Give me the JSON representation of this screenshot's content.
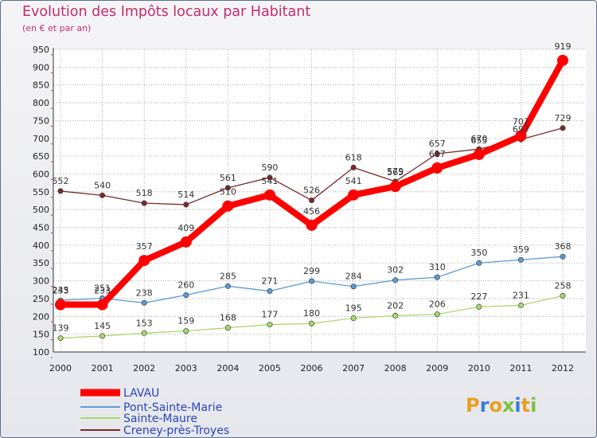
{
  "chart_data": {
    "type": "line",
    "title": "Evolution des Impôts locaux par Habitant",
    "subtitle": "(en € et par an)",
    "xlabel": "",
    "ylabel": "",
    "ylim": [
      100,
      950
    ],
    "yticks": [
      100,
      150,
      200,
      250,
      300,
      350,
      400,
      450,
      500,
      550,
      600,
      650,
      700,
      750,
      800,
      850,
      900,
      950
    ],
    "categories": [
      "2000",
      "2001",
      "2002",
      "2003",
      "2004",
      "2005",
      "2006",
      "2007",
      "2008",
      "2009",
      "2010",
      "2011",
      "2012"
    ],
    "series": [
      {
        "name": "LAVAU",
        "color": "#ff0000",
        "values": [
          233,
          233,
          357,
          409,
          510,
          541,
          456,
          541,
          565,
          617,
          655,
          707,
          919
        ],
        "labels": [
          "233",
          "233",
          "357",
          "409",
          "510",
          "541",
          "456",
          "541",
          "565",
          "617",
          "655",
          "707",
          "919"
        ]
      },
      {
        "name": "Pont-Sainte-Marie",
        "color": "#5b9bd5",
        "values": [
          245,
          251,
          238,
          260,
          285,
          271,
          299,
          284,
          302,
          310,
          350,
          359,
          368
        ],
        "labels": [
          "245",
          "251",
          "238",
          "260",
          "285",
          "271",
          "299",
          "284",
          "302",
          "310",
          "350",
          "359",
          "368"
        ]
      },
      {
        "name": "Sainte-Maure",
        "color": "#a9d86e",
        "values": [
          139,
          145,
          153,
          159,
          168,
          177,
          180,
          195,
          202,
          206,
          227,
          231,
          258
        ],
        "labels": [
          "139",
          "145",
          "153",
          "159",
          "168",
          "177",
          "180",
          "195",
          "202",
          "206",
          "227",
          "231",
          "258"
        ]
      },
      {
        "name": "Creney-près-Troyes",
        "color": "#7b2a2a",
        "values": [
          552,
          540,
          518,
          514,
          561,
          590,
          526,
          618,
          579,
          657,
          670,
          697,
          729
        ],
        "labels": [
          "552",
          "540",
          "518",
          "514",
          "561",
          "590",
          "526",
          "618",
          "579",
          "657",
          "670",
          "697",
          "729"
        ]
      }
    ]
  },
  "logo": {
    "text": "Proxiti"
  }
}
